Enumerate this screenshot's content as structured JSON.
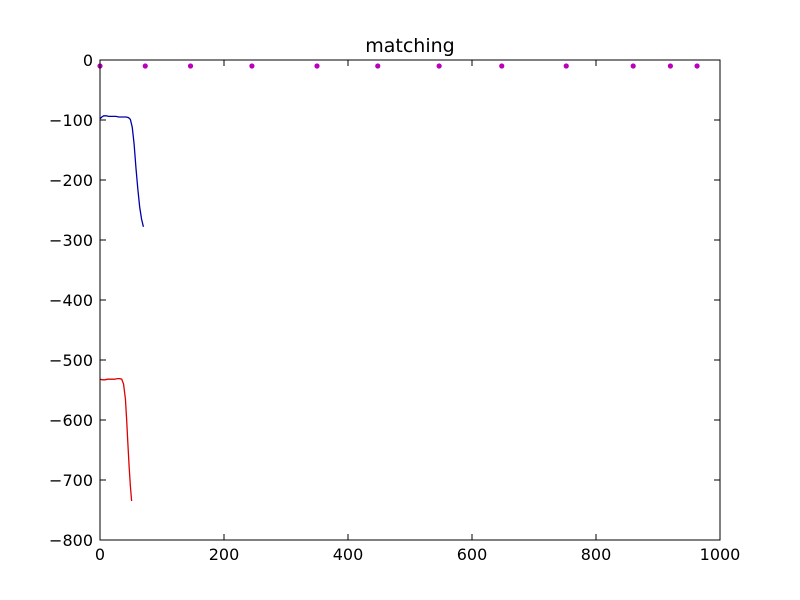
{
  "chart_data": {
    "type": "line",
    "title": "matching",
    "xlabel": "",
    "ylabel": "",
    "xlim": [
      0,
      1000
    ],
    "ylim": [
      -800,
      0
    ],
    "grid": false,
    "x_ticks": [
      0,
      200,
      400,
      600,
      800,
      1000
    ],
    "x_tick_labels": [
      "0",
      "200",
      "400",
      "600",
      "800",
      "1000"
    ],
    "y_ticks": [
      0,
      -100,
      -200,
      -300,
      -400,
      -500,
      -600,
      -700,
      -800
    ],
    "y_tick_labels": [
      "0",
      "−100",
      "−200",
      "−300",
      "−400",
      "−500",
      "−600",
      "−700",
      "−800"
    ],
    "series": [
      {
        "kind": "line",
        "color": "#0000aa",
        "points": [
          [
            0,
            -98
          ],
          [
            3,
            -95
          ],
          [
            6,
            -93
          ],
          [
            10,
            -93
          ],
          [
            14,
            -94
          ],
          [
            18,
            -94
          ],
          [
            22,
            -94
          ],
          [
            26,
            -94
          ],
          [
            30,
            -95
          ],
          [
            34,
            -95
          ],
          [
            38,
            -95
          ],
          [
            42,
            -95
          ],
          [
            46,
            -96
          ],
          [
            49,
            -99
          ],
          [
            52,
            -112
          ],
          [
            55,
            -140
          ],
          [
            58,
            -180
          ],
          [
            61,
            -215
          ],
          [
            64,
            -245
          ],
          [
            67,
            -265
          ],
          [
            70,
            -278
          ]
        ]
      },
      {
        "kind": "line",
        "color": "#dd0000",
        "points": [
          [
            0,
            -532
          ],
          [
            4,
            -533
          ],
          [
            8,
            -533
          ],
          [
            12,
            -532
          ],
          [
            16,
            -532
          ],
          [
            20,
            -532
          ],
          [
            24,
            -532
          ],
          [
            28,
            -531
          ],
          [
            32,
            -531
          ],
          [
            35,
            -532
          ],
          [
            38,
            -540
          ],
          [
            41,
            -565
          ],
          [
            43,
            -600
          ],
          [
            45,
            -640
          ],
          [
            47,
            -678
          ],
          [
            49,
            -710
          ],
          [
            51,
            -735
          ]
        ]
      },
      {
        "kind": "scatter",
        "color": "#bb00bb",
        "points": [
          [
            0,
            -10
          ],
          [
            73,
            -10
          ],
          [
            146,
            -10
          ],
          [
            245,
            -10
          ],
          [
            350,
            -10
          ],
          [
            448,
            -10
          ],
          [
            547,
            -10
          ],
          [
            648,
            -10
          ],
          [
            752,
            -10
          ],
          [
            860,
            -10
          ],
          [
            920,
            -10
          ],
          [
            963,
            -10
          ]
        ]
      }
    ]
  }
}
